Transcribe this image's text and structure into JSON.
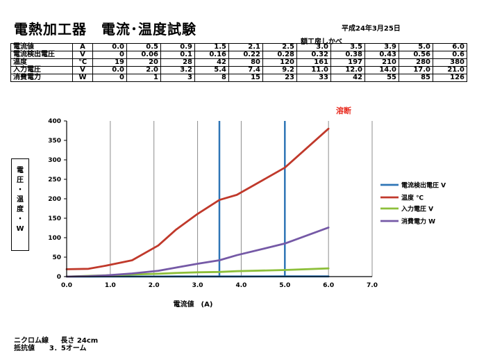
{
  "header": {
    "title": "電熱加工器　電流･温度試験",
    "date": "平成24年3月25日",
    "author": "額工房しかべ"
  },
  "table": {
    "rows": [
      {
        "label": "電流値",
        "unit": "A",
        "values": [
          "0.0",
          "0.5",
          "0.9",
          "1.5",
          "2.1",
          "2.5",
          "3.0",
          "3.5",
          "3.9",
          "5.0",
          "6.0"
        ]
      },
      {
        "label": "電流検出電圧",
        "unit": "V",
        "values": [
          "0",
          "0.06",
          "0.1",
          "0.16",
          "0.22",
          "0.28",
          "0.32",
          "0.38",
          "0.43",
          "0.56",
          "0.6"
        ]
      },
      {
        "label": "温度",
        "unit": "℃",
        "values": [
          "19",
          "20",
          "28",
          "42",
          "80",
          "120",
          "161",
          "197",
          "210",
          "280",
          "380"
        ]
      },
      {
        "label": "入力電圧",
        "unit": "V",
        "values": [
          "0.0",
          "2.0",
          "3.2",
          "5.4",
          "7.4",
          "9.2",
          "11.0",
          "12.0",
          "14.0",
          "17.0",
          "21.0"
        ]
      },
      {
        "label": "消費電力",
        "unit": "W",
        "values": [
          "0",
          "1",
          "3",
          "8",
          "15",
          "23",
          "33",
          "42",
          "55",
          "85",
          "126"
        ]
      }
    ]
  },
  "chart_data": {
    "type": "line",
    "xlabel": "電流値　(A)",
    "ylabel": [
      "電",
      "圧",
      "・",
      "温",
      "度",
      "・",
      "W"
    ],
    "xlim": [
      0,
      7
    ],
    "ylim": [
      0,
      400
    ],
    "xticks": [
      "0.0",
      "1.0",
      "2.0",
      "3.0",
      "4.0",
      "5.0",
      "6.0",
      "7.0"
    ],
    "yticks": [
      "0",
      "50",
      "100",
      "150",
      "200",
      "250",
      "300",
      "350",
      "400"
    ],
    "grid": "vertical",
    "legend_position": "right",
    "annotation": "溶断",
    "markers_x": [
      3.5,
      5.0
    ],
    "x": [
      0.0,
      0.5,
      0.9,
      1.5,
      2.1,
      2.5,
      3.0,
      3.5,
      3.9,
      5.0,
      6.0
    ],
    "series": [
      {
        "name": "電流検出電圧 V",
        "color": "#2e75b6",
        "values": [
          0,
          0.06,
          0.1,
          0.16,
          0.22,
          0.28,
          0.32,
          0.38,
          0.43,
          0.56,
          0.6
        ]
      },
      {
        "name": "温度 ℃",
        "color": "#c0392b",
        "values": [
          19,
          20,
          28,
          42,
          80,
          120,
          161,
          197,
          210,
          280,
          380
        ]
      },
      {
        "name": "入力電圧 V",
        "color": "#8dbf3a",
        "values": [
          0.0,
          2.0,
          3.2,
          5.4,
          7.4,
          9.2,
          11.0,
          12.0,
          14.0,
          17.0,
          21.0
        ]
      },
      {
        "name": "消費電力 W",
        "color": "#7559a6",
        "values": [
          0,
          1,
          3,
          8,
          15,
          23,
          33,
          42,
          55,
          85,
          126
        ]
      }
    ]
  },
  "footer": {
    "wire_label": "ニクロム線",
    "wire_value": "長さ 24cm",
    "resistance_label": "抵抗値",
    "resistance_value": "3．5オーム"
  }
}
